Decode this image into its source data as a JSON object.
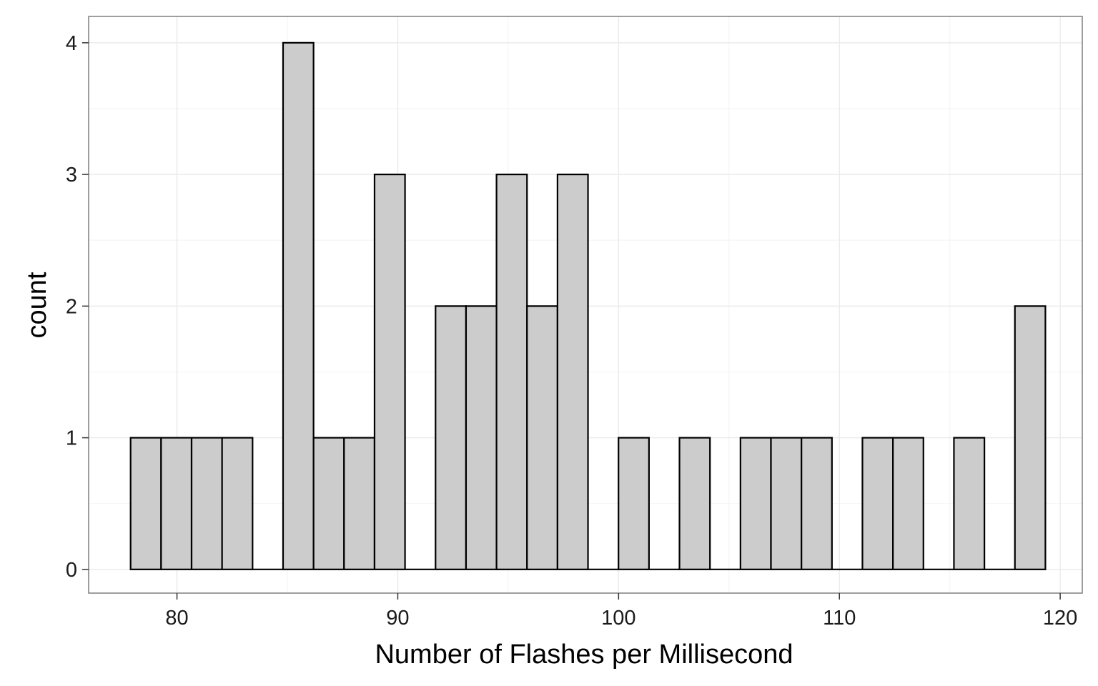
{
  "chart_data": {
    "type": "bar",
    "subtype": "histogram",
    "title": "",
    "xlabel": "Number of Flashes per Millisecond",
    "ylabel": "count",
    "xlim": [
      76,
      121
    ],
    "ylim": [
      -0.18,
      4.2
    ],
    "x_ticks": [
      80,
      90,
      100,
      110,
      120
    ],
    "x_minor_ticks": [
      85,
      95,
      105,
      115
    ],
    "y_ticks": [
      0,
      1,
      2,
      3,
      4
    ],
    "y_minor_ticks": [
      0.5,
      1.5,
      2.5,
      3.5
    ],
    "grid": true,
    "legend": "none",
    "bin_start": 77.9,
    "bin_width": 1.381,
    "counts": [
      1,
      1,
      1,
      1,
      0,
      4,
      1,
      1,
      3,
      0,
      2,
      2,
      3,
      2,
      3,
      0,
      1,
      0,
      1,
      0,
      1,
      1,
      1,
      0,
      1,
      1,
      0,
      1,
      0,
      2
    ],
    "colors": {
      "bar_fill": "#cccccc",
      "bar_stroke": "#000000",
      "panel_border": "#7f7f7f",
      "grid_major": "#ebebeb",
      "grid_minor": "#f5f5f5"
    }
  }
}
